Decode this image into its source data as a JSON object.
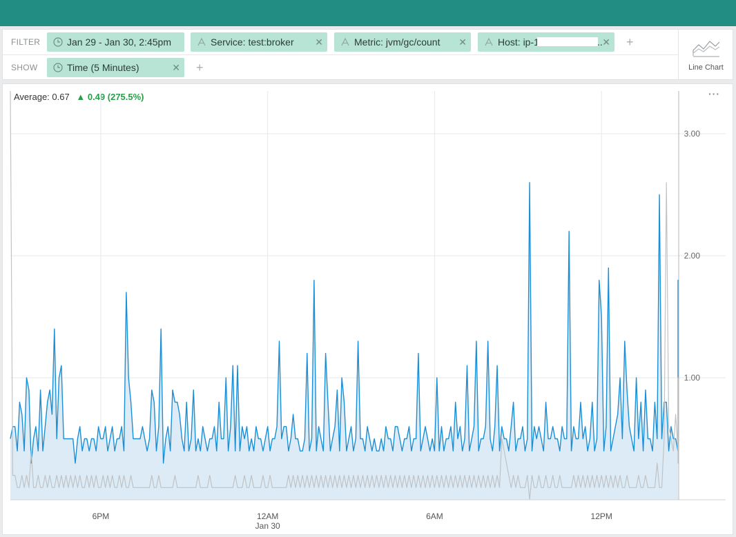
{
  "header": {
    "color": "#218d83"
  },
  "query": {
    "filter_label": "FILTER",
    "show_label": "SHOW",
    "filters": [
      {
        "label": "Jan 29 - Jan 30, 2:45pm",
        "icon": "clock-icon",
        "removable": false
      },
      {
        "label": "Service: test:broker",
        "icon": "attribute-icon",
        "removable": true
      },
      {
        "label": "Metric: jvm/gc/count",
        "icon": "attribute-icon",
        "removable": true
      },
      {
        "label": "Host: ip-1",
        "label_suffix": "..",
        "icon": "attribute-icon",
        "removable": true
      }
    ],
    "show": [
      {
        "label": "Time (5 Minutes)",
        "icon": "clock-icon",
        "removable": true
      }
    ],
    "chart_type": {
      "label": "Line Chart",
      "icon": "line-chart-icon"
    }
  },
  "summary": {
    "label": "Average: 0.67",
    "change": "0.49 (275.5%)",
    "change_color": "#2a9d4a",
    "change_icon": "up-triangle-icon"
  },
  "chart_data": {
    "type": "area",
    "x_start": "2024-01-29T14:45",
    "x_end": "2024-01-30T14:45",
    "x_step_minutes": 5,
    "xticks": [
      {
        "x": "2024-01-29T18:00",
        "label": "6PM"
      },
      {
        "x": "2024-01-30T00:00",
        "label": "12AM",
        "sublabel": "Jan 30"
      },
      {
        "x": "2024-01-30T06:00",
        "label": "6AM"
      },
      {
        "x": "2024-01-30T12:00",
        "label": "12PM"
      }
    ],
    "ylim": [
      0,
      3.35
    ],
    "yticks": [
      "1.00",
      "2.00",
      "3.00"
    ],
    "y_axis_side": "right",
    "grid": true,
    "series": [
      {
        "color": "#1a8fd6",
        "fill": "#dcebf5",
        "role": "current",
        "values": [
          0.5,
          0.6,
          0.6,
          0.4,
          0.8,
          0.7,
          0.4,
          1.0,
          0.9,
          0.3,
          0.5,
          0.6,
          0.4,
          0.9,
          0.4,
          0.6,
          0.8,
          0.9,
          0.7,
          1.4,
          0.5,
          1.0,
          1.1,
          0.5,
          0.5,
          0.5,
          0.5,
          0.5,
          0.3,
          0.5,
          0.6,
          0.4,
          0.5,
          0.5,
          0.4,
          0.5,
          0.5,
          0.4,
          0.6,
          0.5,
          0.5,
          0.6,
          0.4,
          0.5,
          0.6,
          0.4,
          0.5,
          0.5,
          0.6,
          0.4,
          1.7,
          1.0,
          0.8,
          0.5,
          0.5,
          0.5,
          0.5,
          0.6,
          0.5,
          0.4,
          0.5,
          0.9,
          0.8,
          0.4,
          0.6,
          1.4,
          0.3,
          0.5,
          0.6,
          0.4,
          0.9,
          0.8,
          0.8,
          0.7,
          0.5,
          0.4,
          0.8,
          0.4,
          0.5,
          0.9,
          0.4,
          0.5,
          0.4,
          0.6,
          0.5,
          0.4,
          0.5,
          0.5,
          0.6,
          0.4,
          0.8,
          0.5,
          0.5,
          1.0,
          0.4,
          0.6,
          1.1,
          0.4,
          1.1,
          0.4,
          0.6,
          0.5,
          0.6,
          0.4,
          0.5,
          0.4,
          0.6,
          0.5,
          0.5,
          0.4,
          0.5,
          0.6,
          0.4,
          0.5,
          0.5,
          0.6,
          1.3,
          0.5,
          0.6,
          0.6,
          0.4,
          0.5,
          0.7,
          0.5,
          0.5,
          0.4,
          0.4,
          0.5,
          1.2,
          0.4,
          0.5,
          1.8,
          0.4,
          0.6,
          0.5,
          0.4,
          1.2,
          0.8,
          0.4,
          0.5,
          0.6,
          0.9,
          0.4,
          1.0,
          0.8,
          0.4,
          0.5,
          0.6,
          0.4,
          0.5,
          1.3,
          0.5,
          0.5,
          0.4,
          0.6,
          0.5,
          0.4,
          0.5,
          0.4,
          0.4,
          0.5,
          0.4,
          0.6,
          0.5,
          0.5,
          0.4,
          0.6,
          0.6,
          0.5,
          0.4,
          0.5,
          0.5,
          0.6,
          0.4,
          0.5,
          0.5,
          1.2,
          0.4,
          0.5,
          0.6,
          0.5,
          0.4,
          0.5,
          0.4,
          1.0,
          0.4,
          0.6,
          0.4,
          0.5,
          0.5,
          0.6,
          0.4,
          0.8,
          0.5,
          0.6,
          0.4,
          0.5,
          1.1,
          0.4,
          0.5,
          0.6,
          1.3,
          0.4,
          0.5,
          0.5,
          0.6,
          1.3,
          0.5,
          0.4,
          0.6,
          1.1,
          0.4,
          0.6,
          0.5,
          0.5,
          0.4,
          0.6,
          0.8,
          0.4,
          0.5,
          0.5,
          0.6,
          0.4,
          0.5,
          2.6,
          0.4,
          0.6,
          0.5,
          0.6,
          0.5,
          0.4,
          0.8,
          0.5,
          0.5,
          0.6,
          0.5,
          0.5,
          0.4,
          0.6,
          0.5,
          0.5,
          2.2,
          0.4,
          0.6,
          0.5,
          0.5,
          0.8,
          0.5,
          0.6,
          0.4,
          0.5,
          0.8,
          0.4,
          0.5,
          1.8,
          1.5,
          0.4,
          0.6,
          1.9,
          0.4,
          0.5,
          0.6,
          0.7,
          1.0,
          0.5,
          1.3,
          0.9,
          0.6,
          0.5,
          0.4,
          1.0,
          0.5,
          0.8,
          0.4,
          0.9,
          0.5,
          0.5,
          0.4,
          0.8,
          0.5,
          2.5,
          0.5,
          0.8,
          0.8,
          0.4,
          0.6,
          0.5,
          0.5,
          0.4,
          1.0,
          0.9,
          1.8,
          1.0,
          0.8,
          1.0
        ]
      },
      {
        "color": "#bfc3c6",
        "role": "comparison",
        "values": [
          3.35,
          0.2,
          0.2,
          0.1,
          0.1,
          0.2,
          0.1,
          0.2,
          0.1,
          0.4,
          0.1,
          0.1,
          0.2,
          0.1,
          0.1,
          0.2,
          0.1,
          0.2,
          0.1,
          0.1,
          0.2,
          0.1,
          0.2,
          0.1,
          0.2,
          0.1,
          0.2,
          0.1,
          0.2,
          0.1,
          0.2,
          0.1,
          0.1,
          0.2,
          0.1,
          0.2,
          0.1,
          0.2,
          0.1,
          0.1,
          0.2,
          0.1,
          0.2,
          0.1,
          0.2,
          0.1,
          0.1,
          0.2,
          0.1,
          0.2,
          0.1,
          0.1,
          0.2,
          0.1,
          0.1,
          0.1,
          0.1,
          0.1,
          0.1,
          0.1,
          0.1,
          0.2,
          0.1,
          0.1,
          0.2,
          0.1,
          0.1,
          0.1,
          0.1,
          0.1,
          0.1,
          0.2,
          0.1,
          0.1,
          0.1,
          0.1,
          0.1,
          0.1,
          0.1,
          0.1,
          0.1,
          0.2,
          0.1,
          0.1,
          0.1,
          0.1,
          0.2,
          0.1,
          0.1,
          0.1,
          0.1,
          0.1,
          0.1,
          0.1,
          0.1,
          0.1,
          0.1,
          0.2,
          0.1,
          0.1,
          0.1,
          0.2,
          0.1,
          0.1,
          0.2,
          0.1,
          0.1,
          0.1,
          0.1,
          0.2,
          0.1,
          0.1,
          0.2,
          0.1,
          0.1,
          0.1,
          0.1,
          0.1,
          0.1,
          0.1,
          0.2,
          0.1,
          0.2,
          0.1,
          0.2,
          0.1,
          0.2,
          0.1,
          0.2,
          0.1,
          0.2,
          0.1,
          0.2,
          0.1,
          0.2,
          0.1,
          0.2,
          0.1,
          0.2,
          0.1,
          0.2,
          0.1,
          0.2,
          0.1,
          0.2,
          0.1,
          0.2,
          0.1,
          0.2,
          0.1,
          0.2,
          0.1,
          0.2,
          0.1,
          0.2,
          0.1,
          0.2,
          0.1,
          0.2,
          0.1,
          0.2,
          0.1,
          0.2,
          0.1,
          0.2,
          0.1,
          0.2,
          0.1,
          0.2,
          0.1,
          0.2,
          0.1,
          0.2,
          0.1,
          0.2,
          0.1,
          0.2,
          0.1,
          0.2,
          0.1,
          0.2,
          0.1,
          0.2,
          0.1,
          0.2,
          0.1,
          0.2,
          0.1,
          0.2,
          0.1,
          0.2,
          0.1,
          0.2,
          0.1,
          0.2,
          0.1,
          0.2,
          0.1,
          0.2,
          0.1,
          0.2,
          0.1,
          0.2,
          0.1,
          0.2,
          0.1,
          0.2,
          0.1,
          0.2,
          0.1,
          0.2,
          0.1,
          0.5,
          0.4,
          0.3,
          0.2,
          0.1,
          0.2,
          0.1,
          0.2,
          0.1,
          0.1,
          0.1,
          0.2,
          0.0,
          0.2,
          0.1,
          0.1,
          0.2,
          0.1,
          0.1,
          0.2,
          0.1,
          0.1,
          0.2,
          0.1,
          0.1,
          0.2,
          0.1,
          0.1,
          0.1,
          0.1,
          0.1,
          0.2,
          0.1,
          0.2,
          0.1,
          0.2,
          0.1,
          0.2,
          0.1,
          0.2,
          0.1,
          0.2,
          0.1,
          0.2,
          0.1,
          0.2,
          0.1,
          0.2,
          0.1,
          0.2,
          0.1,
          0.2,
          0.1,
          0.1,
          0.2,
          0.1,
          0.1,
          0.1,
          0.1,
          0.2,
          0.1,
          0.1,
          0.2,
          0.1,
          0.1,
          0.1,
          0.1,
          0.3,
          0.1,
          0.1,
          0.5,
          2.6,
          0.6,
          0.5,
          0.4,
          0.7,
          0.4,
          0.9,
          1.0,
          0.9,
          0.3,
          0.4
        ]
      }
    ]
  }
}
